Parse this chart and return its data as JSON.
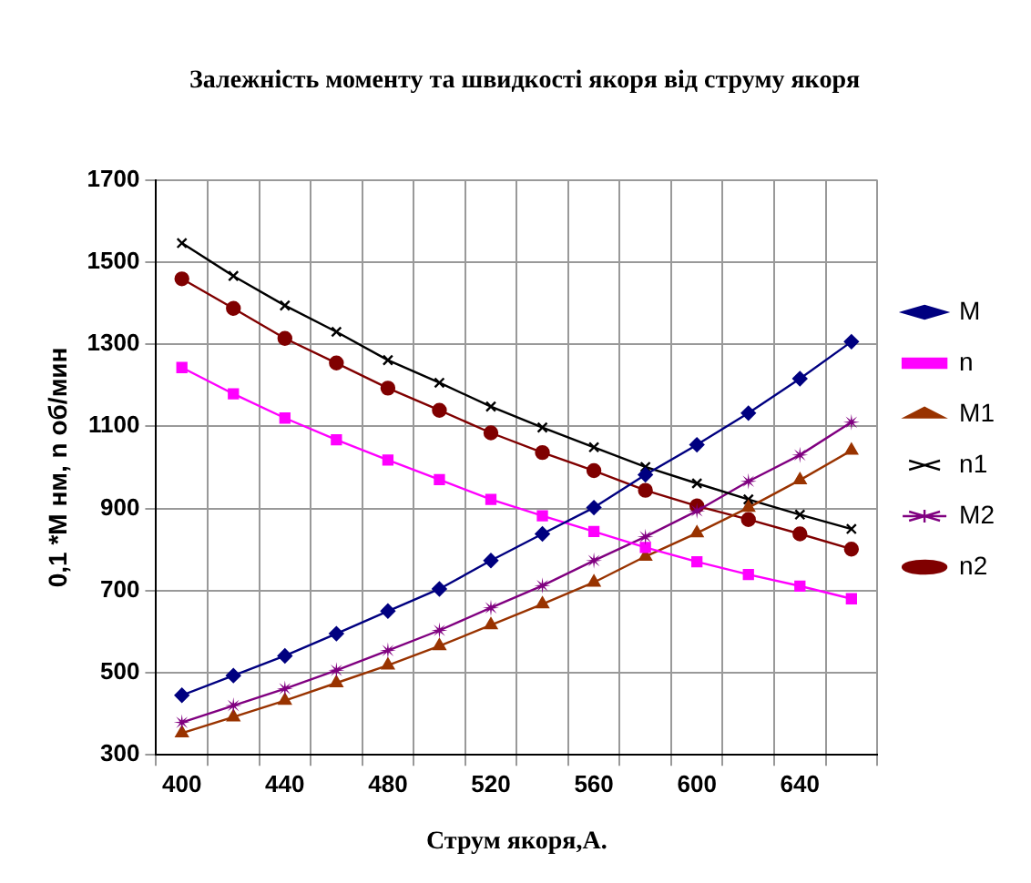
{
  "chart_data": {
    "type": "line",
    "title": "Залежність моменту та швидкості якоря від струму якоря",
    "xlabel": "Струм якоря,А.",
    "ylabel": "0,1 *M нм, n об/мин",
    "categories": [
      "400",
      null,
      "440",
      null,
      "480",
      null,
      "520",
      null,
      "560",
      null,
      "600",
      null,
      "640",
      null
    ],
    "ylim": [
      300,
      1700
    ],
    "yticks": [
      300,
      500,
      700,
      900,
      1100,
      1300,
      1500,
      1700
    ],
    "grid": true,
    "legend": "right",
    "series": [
      {
        "name": "M",
        "color": "#000080",
        "marker": "diamond",
        "values": [
          445,
          493,
          541,
          595,
          650,
          704,
          773,
          838,
          902,
          982,
          1055,
          1132,
          1216,
          1306
        ]
      },
      {
        "name": "n",
        "color": "#ff00ff",
        "marker": "square",
        "values": [
          1243,
          1179,
          1120,
          1067,
          1018,
          970,
          922,
          882,
          844,
          805,
          770,
          739,
          711,
          680
        ]
      },
      {
        "name": "M1",
        "color": "#993300",
        "marker": "triangle",
        "values": [
          353,
          392,
          432,
          475,
          518,
          565,
          616,
          667,
          720,
          783,
          840,
          902,
          969,
          1041
        ]
      },
      {
        "name": "n1",
        "color": "#000000",
        "marker": "cross",
        "values": [
          1546,
          1466,
          1394,
          1330,
          1261,
          1206,
          1148,
          1097,
          1049,
          1001,
          961,
          922,
          885,
          850
        ]
      },
      {
        "name": "M2",
        "color": "#800080",
        "marker": "star",
        "values": [
          379,
          420,
          461,
          506,
          554,
          603,
          658,
          712,
          773,
          831,
          894,
          966,
          1030,
          1110
        ]
      },
      {
        "name": "n2",
        "color": "#800000",
        "marker": "circle",
        "values": [
          1459,
          1387,
          1314,
          1254,
          1193,
          1139,
          1084,
          1036,
          992,
          944,
          906,
          873,
          838,
          801
        ]
      }
    ]
  }
}
